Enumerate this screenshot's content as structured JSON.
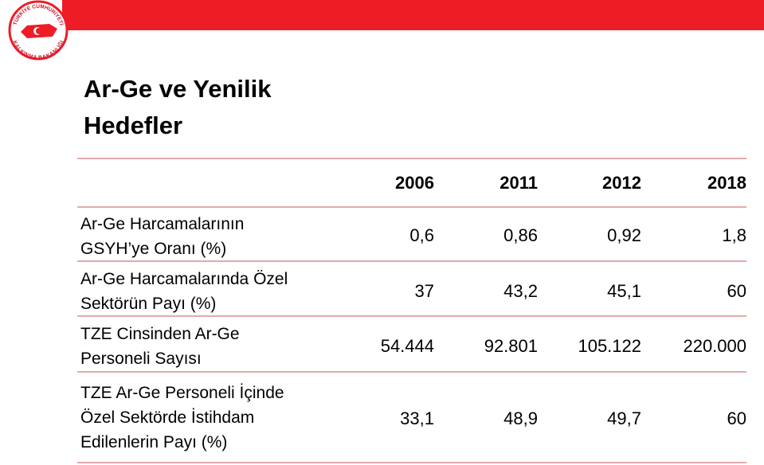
{
  "logo": {
    "top_text": "TÜRKİYE CUMHURİYETİ",
    "bottom_text": "KALKINMA BAKANLIĞI"
  },
  "header": {
    "title_lines": [
      "Ar-Ge ve Yenilik",
      "Hedefler"
    ]
  },
  "table": {
    "columns": [
      "2006",
      "2011",
      "2012",
      "2018"
    ],
    "rows": [
      {
        "label_lines": [
          "Ar-Ge Harcamalarının",
          "GSYH’ye Oranı (%)"
        ],
        "values": [
          "0,6",
          "0,86",
          "0,92",
          "1,8"
        ]
      },
      {
        "label_lines": [
          "Ar-Ge Harcamalarında Özel",
          "Sektörün Payı (%)"
        ],
        "values": [
          "37",
          "43,2",
          "45,1",
          "60"
        ]
      },
      {
        "label_lines": [
          "TZE Cinsinden Ar-Ge",
          "Personeli Sayısı"
        ],
        "values": [
          "54.444",
          "92.801",
          "105.122",
          "220.000"
        ]
      },
      {
        "label_lines": [
          "TZE Ar-Ge Personeli İçinde",
          "Özel Sektörde İstihdam",
          "Edilenlerin Payı (%)"
        ],
        "values": [
          "33,1",
          "48,9",
          "49,7",
          "60"
        ]
      }
    ]
  }
}
